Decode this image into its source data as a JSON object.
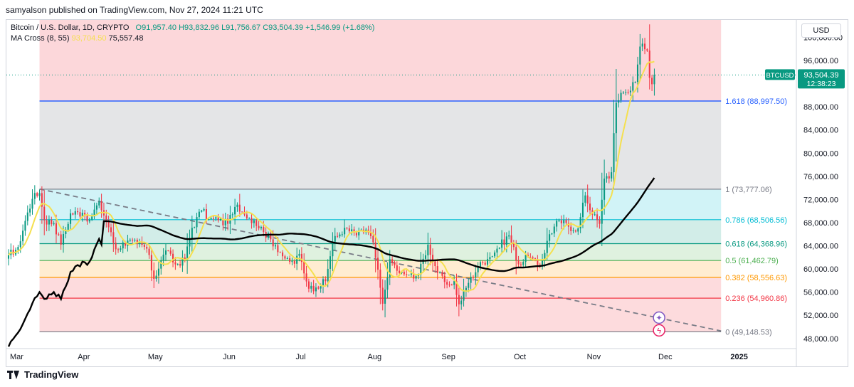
{
  "header": {
    "text": "samyalson published on TradingView.com, Nov 27, 2024 11:21 UTC"
  },
  "legend": {
    "symbol": "Bitcoin / U.S. Dollar, 1D, CRYPTO",
    "open": "O91,957.40",
    "high": "H93,832.96",
    "low": "L91,756.67",
    "close": "C93,504.39",
    "change": "+1,546.99 (+1.68%)",
    "ma_label": "MA Cross (8, 55)",
    "ma_fast_value": "93,704.50",
    "ma_slow_value": "75,557.48"
  },
  "price_scale": {
    "currency": "USD",
    "ticker": "BTCUSD",
    "last_price": "93,504.39",
    "countdown": "12:38:23"
  },
  "footer": {
    "brand": "TradingView"
  },
  "colors": {
    "up": "#089981",
    "down": "#f23645",
    "ma_fast": "#f5e04f",
    "ma_slow": "#000000",
    "fib_1618": "#2962ff",
    "accent": "#2962ff"
  },
  "chart_data": {
    "type": "candlestick",
    "title": "Bitcoin / U.S. Dollar, 1D, CRYPTO",
    "y_axis": {
      "range": [
        46500,
        103000
      ],
      "ticks": [
        48000,
        52000,
        56000,
        60000,
        64000,
        68000,
        72000,
        76000,
        80000,
        84000,
        88000,
        92000,
        96000,
        100000
      ],
      "tick_labels": [
        "48,000.00",
        "52,000.00",
        "56,000.00",
        "60,000.00",
        "64,000.00",
        "68,000.00",
        "72,000.00",
        "76,000.00",
        "80,000.00",
        "84,000.00",
        "88,000.00",
        "92,000.00",
        "96,000.00",
        "100,000.00"
      ]
    },
    "x_axis": {
      "range": [
        "2024-03-01",
        "2025-01-25"
      ],
      "ticks": [
        {
          "date": "2024-03-01",
          "label": "Mar"
        },
        {
          "date": "2024-04-01",
          "label": "Apr"
        },
        {
          "date": "2024-05-01",
          "label": "May"
        },
        {
          "date": "2024-06-01",
          "label": "Jun"
        },
        {
          "date": "2024-07-01",
          "label": "Jul"
        },
        {
          "date": "2024-08-01",
          "label": "Aug"
        },
        {
          "date": "2024-09-01",
          "label": "Sep"
        },
        {
          "date": "2024-10-01",
          "label": "Oct"
        },
        {
          "date": "2024-11-01",
          "label": "Nov"
        },
        {
          "date": "2024-12-01",
          "label": "Dec"
        },
        {
          "date": "2025-01-01",
          "label": "2025"
        }
      ]
    },
    "fibonacci": {
      "start_date": "2024-03-14",
      "end_date": "2024-12-25",
      "levels": [
        {
          "ratio": "1.618",
          "price": 88997.5,
          "label": "1.618 (88,997.50)",
          "line": "#2962ff",
          "fill": "rgba(41,98,255,0.18)"
        },
        {
          "ratio": "1",
          "price": 73777.06,
          "label": "1 (73,777.06)",
          "line": "#787b86",
          "fill": "rgba(120,123,134,0.20)"
        },
        {
          "ratio": "0.786",
          "price": 68506.56,
          "label": "0.786 (68,506.56)",
          "line": "#00bcd4",
          "fill": "rgba(0,188,212,0.18)"
        },
        {
          "ratio": "0.618",
          "price": 64368.96,
          "label": "0.618 (64,368.96)",
          "line": "#089981",
          "fill": "rgba(8,153,129,0.18)"
        },
        {
          "ratio": "0.5",
          "price": 61462.79,
          "label": "0.5 (61,462.79)",
          "line": "#4caf50",
          "fill": "rgba(76,175,80,0.18)"
        },
        {
          "ratio": "0.382",
          "price": 58556.63,
          "label": "0.382 (58,556.63)",
          "line": "#ff9800",
          "fill": "rgba(255,152,0,0.18)"
        },
        {
          "ratio": "0.236",
          "price": 54960.86,
          "label": "0.236 (54,960.86)",
          "line": "#f23645",
          "fill": "rgba(242,54,69,0.18)"
        },
        {
          "ratio": "0",
          "price": 49148.53,
          "label": "0 (49,148.53)",
          "line": "#787b86",
          "fill": "rgba(242,54,69,0.18)"
        }
      ],
      "top_fill": "rgba(242,54,69,0.20)"
    },
    "trendline": {
      "from": {
        "date": "2024-03-14",
        "price": 73800
      },
      "to": {
        "date": "2024-12-25",
        "price": 49300
      },
      "color": "#787b86",
      "style": "dashed"
    },
    "close_anchors": [
      [
        "2024-03-01",
        62400
      ],
      [
        "2024-03-05",
        63800
      ],
      [
        "2024-03-08",
        68300
      ],
      [
        "2024-03-11",
        72100
      ],
      [
        "2024-03-14",
        73100
      ],
      [
        "2024-03-16",
        68400
      ],
      [
        "2024-03-20",
        67900
      ],
      [
        "2024-03-23",
        64200
      ],
      [
        "2024-03-27",
        69600
      ],
      [
        "2024-04-01",
        69700
      ],
      [
        "2024-04-04",
        68500
      ],
      [
        "2024-04-08",
        71600
      ],
      [
        "2024-04-12",
        67200
      ],
      [
        "2024-04-15",
        63400
      ],
      [
        "2024-04-20",
        64900
      ],
      [
        "2024-04-24",
        64300
      ],
      [
        "2024-04-28",
        63500
      ],
      [
        "2024-05-01",
        58300
      ],
      [
        "2024-05-06",
        63200
      ],
      [
        "2024-05-10",
        60800
      ],
      [
        "2024-05-14",
        61600
      ],
      [
        "2024-05-17",
        67100
      ],
      [
        "2024-05-21",
        70100
      ],
      [
        "2024-05-24",
        68600
      ],
      [
        "2024-05-28",
        68400
      ],
      [
        "2024-06-01",
        67800
      ],
      [
        "2024-06-05",
        71100
      ],
      [
        "2024-06-08",
        69400
      ],
      [
        "2024-06-12",
        68400
      ],
      [
        "2024-06-16",
        66400
      ],
      [
        "2024-06-21",
        64100
      ],
      [
        "2024-06-25",
        61800
      ],
      [
        "2024-06-29",
        60900
      ],
      [
        "2024-07-01",
        62600
      ],
      [
        "2024-07-05",
        56600
      ],
      [
        "2024-07-08",
        56800
      ],
      [
        "2024-07-12",
        57900
      ],
      [
        "2024-07-15",
        64700
      ],
      [
        "2024-07-20",
        67100
      ],
      [
        "2024-07-25",
        65800
      ],
      [
        "2024-07-29",
        66800
      ],
      [
        "2024-08-01",
        64600
      ],
      [
        "2024-08-05",
        54000
      ],
      [
        "2024-08-08",
        61700
      ],
      [
        "2024-08-12",
        59300
      ],
      [
        "2024-08-16",
        59000
      ],
      [
        "2024-08-20",
        59000
      ],
      [
        "2024-08-24",
        64200
      ],
      [
        "2024-08-28",
        59300
      ],
      [
        "2024-09-01",
        57300
      ],
      [
        "2024-09-04",
        57900
      ],
      [
        "2024-09-06",
        53900
      ],
      [
        "2024-09-10",
        57600
      ],
      [
        "2024-09-14",
        60400
      ],
      [
        "2024-09-18",
        61700
      ],
      [
        "2024-09-22",
        63500
      ],
      [
        "2024-09-27",
        65800
      ],
      [
        "2024-10-01",
        60800
      ],
      [
        "2024-10-05",
        62100
      ],
      [
        "2024-10-10",
        60400
      ],
      [
        "2024-10-14",
        66000
      ],
      [
        "2024-10-18",
        68400
      ],
      [
        "2024-10-22",
        67300
      ],
      [
        "2024-10-26",
        67000
      ],
      [
        "2024-10-29",
        72700
      ],
      [
        "2024-11-01",
        69400
      ],
      [
        "2024-11-04",
        67800
      ],
      [
        "2024-11-06",
        75600
      ],
      [
        "2024-11-09",
        76700
      ],
      [
        "2024-11-11",
        88700
      ],
      [
        "2024-11-13",
        90400
      ],
      [
        "2024-11-16",
        90500
      ],
      [
        "2024-11-19",
        92300
      ],
      [
        "2024-11-21",
        98400
      ],
      [
        "2024-11-22",
        98900
      ],
      [
        "2024-11-24",
        97700
      ],
      [
        "2024-11-25",
        93000
      ],
      [
        "2024-11-26",
        91900
      ],
      [
        "2024-11-27",
        93504
      ]
    ],
    "series": [
      {
        "name": "MA 8",
        "color": "#f5e04f",
        "last": 93704.5
      },
      {
        "name": "MA 55",
        "color": "#000000",
        "last": 75557.48
      }
    ]
  }
}
